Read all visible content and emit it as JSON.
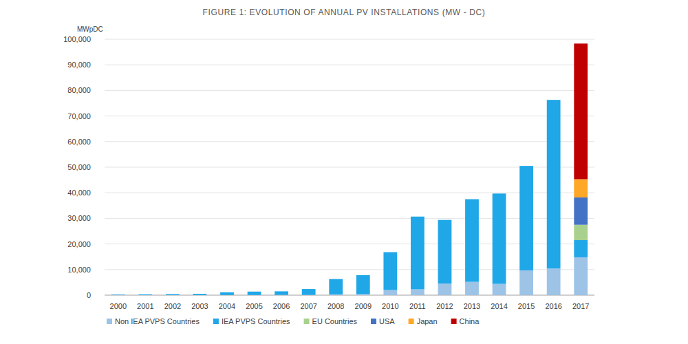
{
  "chart_data": {
    "type": "bar",
    "stacked": true,
    "title": "FIGURE 1: EVOLUTION OF ANNUAL PV INSTALLATIONS (MW - DC)",
    "y_label": "MWpDC",
    "categories": [
      "2000",
      "2001",
      "2002",
      "2003",
      "2004",
      "2005",
      "2006",
      "2007",
      "2008",
      "2009",
      "2010",
      "2011",
      "2012",
      "2013",
      "2014",
      "2015",
      "2016",
      "2017"
    ],
    "series": [
      {
        "name": "Non IEA PVPS Countries",
        "color": "#9dc3e6",
        "values": [
          0,
          0,
          0,
          0,
          50,
          50,
          80,
          100,
          300,
          400,
          2000,
          2300,
          4500,
          5200,
          4400,
          9700,
          10400,
          14800
        ]
      },
      {
        "name": "IEA PVPS Countries",
        "color": "#1fa7e8",
        "values": [
          200,
          300,
          400,
          500,
          1050,
          1350,
          1420,
          2300,
          6000,
          7400,
          14800,
          28400,
          24900,
          32300,
          35300,
          40800,
          65900,
          6700
        ]
      },
      {
        "name": "EU Countries",
        "color": "#a9d18e",
        "values": [
          null,
          null,
          null,
          null,
          null,
          null,
          null,
          null,
          null,
          null,
          null,
          null,
          null,
          null,
          null,
          null,
          null,
          6000
        ]
      },
      {
        "name": "USA",
        "color": "#4472c4",
        "values": [
          null,
          null,
          null,
          null,
          null,
          null,
          null,
          null,
          null,
          null,
          null,
          null,
          null,
          null,
          null,
          null,
          null,
          10700
        ]
      },
      {
        "name": "Japan",
        "color": "#ffa726",
        "values": [
          null,
          null,
          null,
          null,
          null,
          null,
          null,
          null,
          null,
          null,
          null,
          null,
          null,
          null,
          null,
          null,
          null,
          7100
        ]
      },
      {
        "name": "China",
        "color": "#c00000",
        "values": [
          null,
          null,
          null,
          null,
          null,
          null,
          null,
          null,
          null,
          null,
          null,
          null,
          null,
          null,
          null,
          null,
          null,
          53000
        ]
      }
    ],
    "ylim": [
      0,
      100000
    ],
    "yticks": [
      0,
      {
        "value": 10000,
        "label": "10,000"
      },
      {
        "value": 20000,
        "label": "20,000"
      },
      {
        "value": 30000,
        "label": "30,000"
      },
      {
        "value": 40000,
        "label": "40,000"
      },
      {
        "value": 50000,
        "label": "50,000"
      },
      {
        "value": 60000,
        "label": "60,000"
      },
      {
        "value": 70000,
        "label": "70,000"
      },
      {
        "value": 80000,
        "label": "80,000"
      },
      {
        "value": 90000,
        "label": "90,000"
      },
      {
        "value": 100000,
        "label": "100,000"
      }
    ],
    "grid": true,
    "legend": "bottom"
  }
}
